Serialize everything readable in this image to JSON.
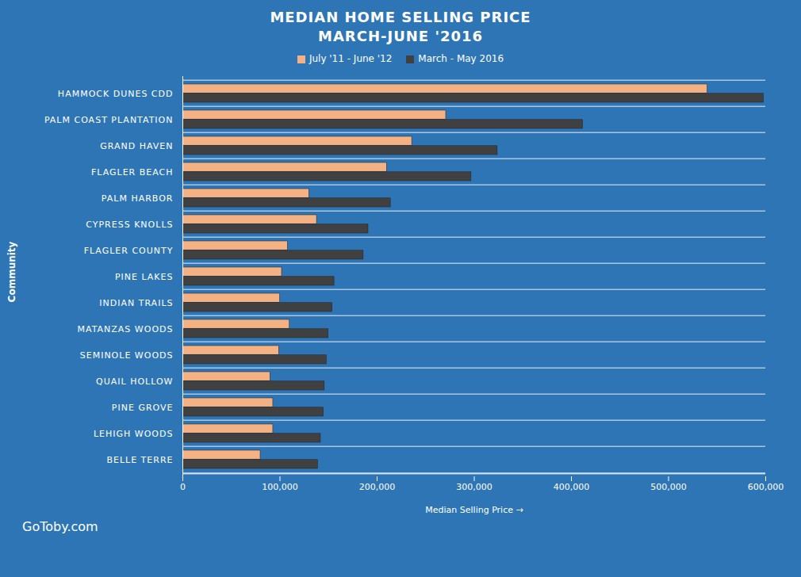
{
  "chart_data": {
    "type": "bar",
    "orientation": "horizontal",
    "title": "MEDIAN HOME SELLING PRICE",
    "subtitle": "MARCH-JUNE  '2016",
    "x_label": "Median Selling Price",
    "y_label": "Community",
    "footer": "GoToby.com",
    "legend": "top",
    "grid": true,
    "categories": [
      "HAMMOCK DUNES CDD",
      "PALM COAST PLANTATION",
      "GRAND HAVEN",
      "FLAGLER BEACH",
      "PALM HARBOR",
      "CYPRESS KNOLLS",
      "FLAGLER COUNTY",
      "PINE LAKES",
      "INDIAN TRAILS",
      "MATANZAS WOODS",
      "SEMINOLE WOODS",
      "QUAIL HOLLOW",
      "PINE GROVE",
      "LEHIGH WOODS",
      "BELLE TERRE"
    ],
    "series": [
      {
        "name": "July '11 - June '12",
        "color": "#f4b183",
        "values": [
          540000,
          271000,
          236000,
          210000,
          130000,
          138000,
          108000,
          102000,
          100000,
          110000,
          99000,
          90000,
          93000,
          93000,
          80000
        ]
      },
      {
        "name": "March - May 2016",
        "color": "#404040",
        "values": [
          598000,
          412000,
          324000,
          297000,
          214000,
          191000,
          186000,
          156000,
          154000,
          150000,
          148000,
          146000,
          145000,
          142000,
          139000
        ]
      }
    ],
    "xlim": [
      0,
      600000
    ],
    "xticks": [
      0,
      {
        "value": 100000,
        "label": "100,000"
      },
      {
        "value": 200000,
        "label": "200,000"
      },
      {
        "value": 300000,
        "label": "300,000"
      },
      {
        "value": 400000,
        "label": "400,000"
      },
      {
        "value": 500000,
        "label": "500,000"
      },
      {
        "value": 600000,
        "label": "600,000"
      }
    ]
  }
}
